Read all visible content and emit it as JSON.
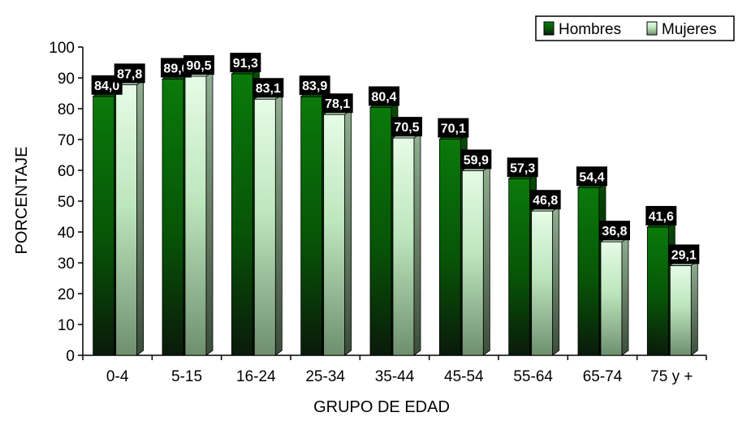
{
  "chart_data": {
    "type": "bar",
    "categories": [
      "0-4",
      "5-15",
      "16-24",
      "25-34",
      "35-44",
      "45-54",
      "55-64",
      "65-74",
      "75 y +"
    ],
    "series": [
      {
        "name": "Hombres",
        "values": [
          84.0,
          89.6,
          91.3,
          83.9,
          80.4,
          70.1,
          57.3,
          54.4,
          41.6
        ],
        "labels": [
          "84,0",
          "89,6",
          "91,3",
          "83,9",
          "80,4",
          "70,1",
          "57,3",
          "54,4",
          "41,6"
        ],
        "color": "#0a7a0a"
      },
      {
        "name": "Mujeres",
        "values": [
          87.8,
          90.5,
          83.1,
          78.1,
          70.5,
          59.9,
          46.8,
          36.8,
          29.1
        ],
        "labels": [
          "87,8",
          "90,5",
          "83,1",
          "78,1",
          "70,5",
          "59,9",
          "46,8",
          "36,8",
          "29,1"
        ],
        "color": "#d8f5d8"
      }
    ],
    "title": "",
    "xlabel": "GRUPO DE EDAD",
    "ylabel": "PORCENTAJE",
    "ylim": [
      0,
      100
    ],
    "yticks": [
      0,
      10,
      20,
      30,
      40,
      50,
      60,
      70,
      80,
      90,
      100
    ],
    "grid": false,
    "legend_position": "top-right",
    "three_d": true
  }
}
